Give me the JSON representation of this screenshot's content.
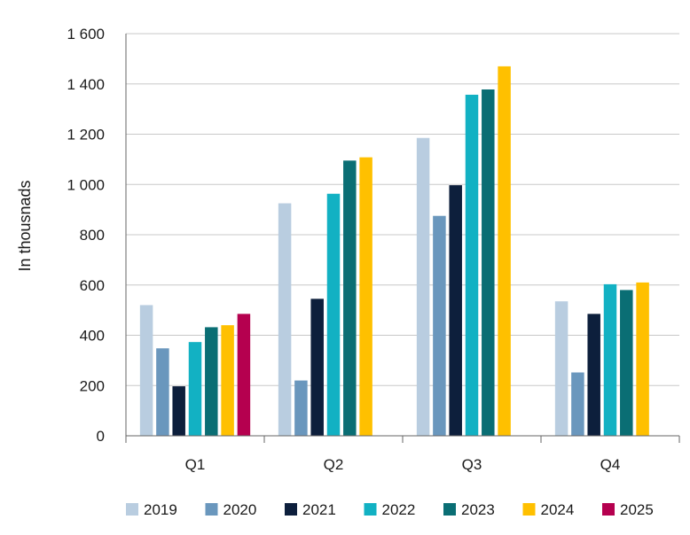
{
  "chart_data": {
    "type": "bar",
    "title": "",
    "xlabel": "",
    "ylabel": "In thousnads",
    "ylim": [
      0,
      1600
    ],
    "yticks": [
      0,
      200,
      400,
      600,
      800,
      1000,
      1200,
      1400,
      1600
    ],
    "ytick_labels": [
      "0",
      "200",
      "400",
      "600",
      "800",
      "1 000",
      "1 200",
      "1 400",
      "1 600"
    ],
    "categories": [
      "Q1",
      "Q2",
      "Q3",
      "Q4"
    ],
    "grid": true,
    "legend_position": "bottom",
    "series": [
      {
        "name": "2019",
        "color": "#b9cde0",
        "values": [
          520,
          925,
          1185,
          535
        ]
      },
      {
        "name": "2020",
        "color": "#6a97bd",
        "values": [
          348,
          220,
          875,
          252
        ]
      },
      {
        "name": "2021",
        "color": "#0d1f3c",
        "values": [
          197,
          545,
          997,
          485
        ]
      },
      {
        "name": "2022",
        "color": "#12b1c3",
        "values": [
          373,
          963,
          1357,
          603
        ]
      },
      {
        "name": "2023",
        "color": "#0a6e74",
        "values": [
          432,
          1095,
          1378,
          580
        ]
      },
      {
        "name": "2024",
        "color": "#ffc000",
        "values": [
          440,
          1108,
          1470,
          610
        ]
      },
      {
        "name": "2025",
        "color": "#b5004f",
        "values": [
          485,
          null,
          null,
          null
        ]
      }
    ]
  }
}
